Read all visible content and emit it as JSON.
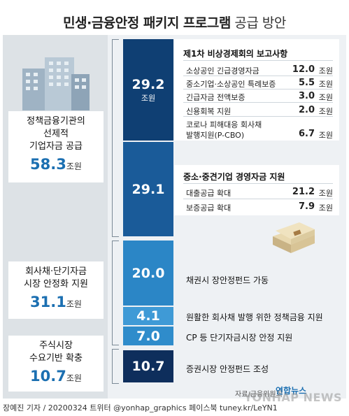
{
  "title_bold": "민생·금융안정 패키지 프로그램",
  "title_light": "공급 방안",
  "left_groups": [
    {
      "lines": [
        "정책금융기관의",
        "선제적",
        "기업자금 공급"
      ],
      "value": "58.3",
      "unit": "조원"
    },
    {
      "lines": [
        "회사채·단기자금",
        "시장 안정화 지원"
      ],
      "value": "31.1",
      "unit": "조원"
    },
    {
      "lines": [
        "주식시장",
        "수요기반 확충"
      ],
      "value": "10.7",
      "unit": "조원"
    }
  ],
  "bars": [
    {
      "value": "29.2",
      "unit": "조원",
      "color": "#0f3f73"
    },
    {
      "value": "29.1",
      "unit": "",
      "color": "#1a5b99"
    },
    {
      "value": "20.0",
      "unit": "",
      "color": "#2b86c6"
    },
    {
      "value": "4.1",
      "unit": "",
      "color": "#3f9ad6"
    },
    {
      "value": "7.0",
      "unit": "",
      "color": "#2f8ccb"
    },
    {
      "value": "10.7",
      "unit": "",
      "color": "#0e2e5c"
    }
  ],
  "panel1": {
    "title": "제1차 비상경제회의 보고사항",
    "rows": [
      {
        "label": "소상공인 긴급경영자금",
        "value": "12.0",
        "unit": "조원"
      },
      {
        "label": "중소기업·소상공인 특례보증",
        "value": "5.5",
        "unit": "조원"
      },
      {
        "label": "긴급자금 전액보증",
        "value": "3.0",
        "unit": "조원"
      },
      {
        "label": "신용회복 지원",
        "value": "2.0",
        "unit": "조원"
      },
      {
        "label": "코로나 피해대응 회사채",
        "value": "",
        "unit": ""
      },
      {
        "label": "발행지원(P-CBO)",
        "value": "6.7",
        "unit": "조원"
      }
    ]
  },
  "panel2": {
    "title": "중소·중견기업 경영자금 지원",
    "rows": [
      {
        "label": "대출공급 확대",
        "value": "21.2",
        "unit": "조원"
      },
      {
        "label": "보증공급 확대",
        "value": "7.9",
        "unit": "조원"
      }
    ]
  },
  "labels": {
    "bond_fund": "채권시 장안정펀드 가동",
    "policy_finance": "원활한 회사채 발행 위한 정책금융 지원",
    "cp_support": "CP 등 단기자금시장 안정 지원",
    "stock_fund": "증권시장 안정펀드 조성"
  },
  "source": "자료/금융위원회",
  "logo": "연합뉴스",
  "watermark": "YONHAP NEWS",
  "footer": "장예진 기자 / 20200324 트위터 @yonhap_graphics 페이스북 tuney.kr/LeYN1",
  "chart_data": {
    "type": "bar",
    "title": "민생·금융안정 패키지 프로그램 공급 방안",
    "unit": "조원",
    "categories": [
      "제1차 비상경제회의 보고사항",
      "중소·중견기업 경영자금 지원",
      "채권시 장안정펀드 가동",
      "원활한 회사채 발행 위한 정책금융 지원",
      "CP 등 단기자금시장 안정 지원",
      "증권시장 안정펀드 조성"
    ],
    "values": [
      29.2,
      29.1,
      20.0,
      4.1,
      7.0,
      10.7
    ],
    "groups": [
      {
        "name": "정책금융기관의 선제적 기업자금 공급",
        "total": 58.3
      },
      {
        "name": "회사채·단기자금 시장 안정화 지원",
        "total": 31.1
      },
      {
        "name": "주식시장 수요기반 확충",
        "total": 10.7
      }
    ]
  }
}
